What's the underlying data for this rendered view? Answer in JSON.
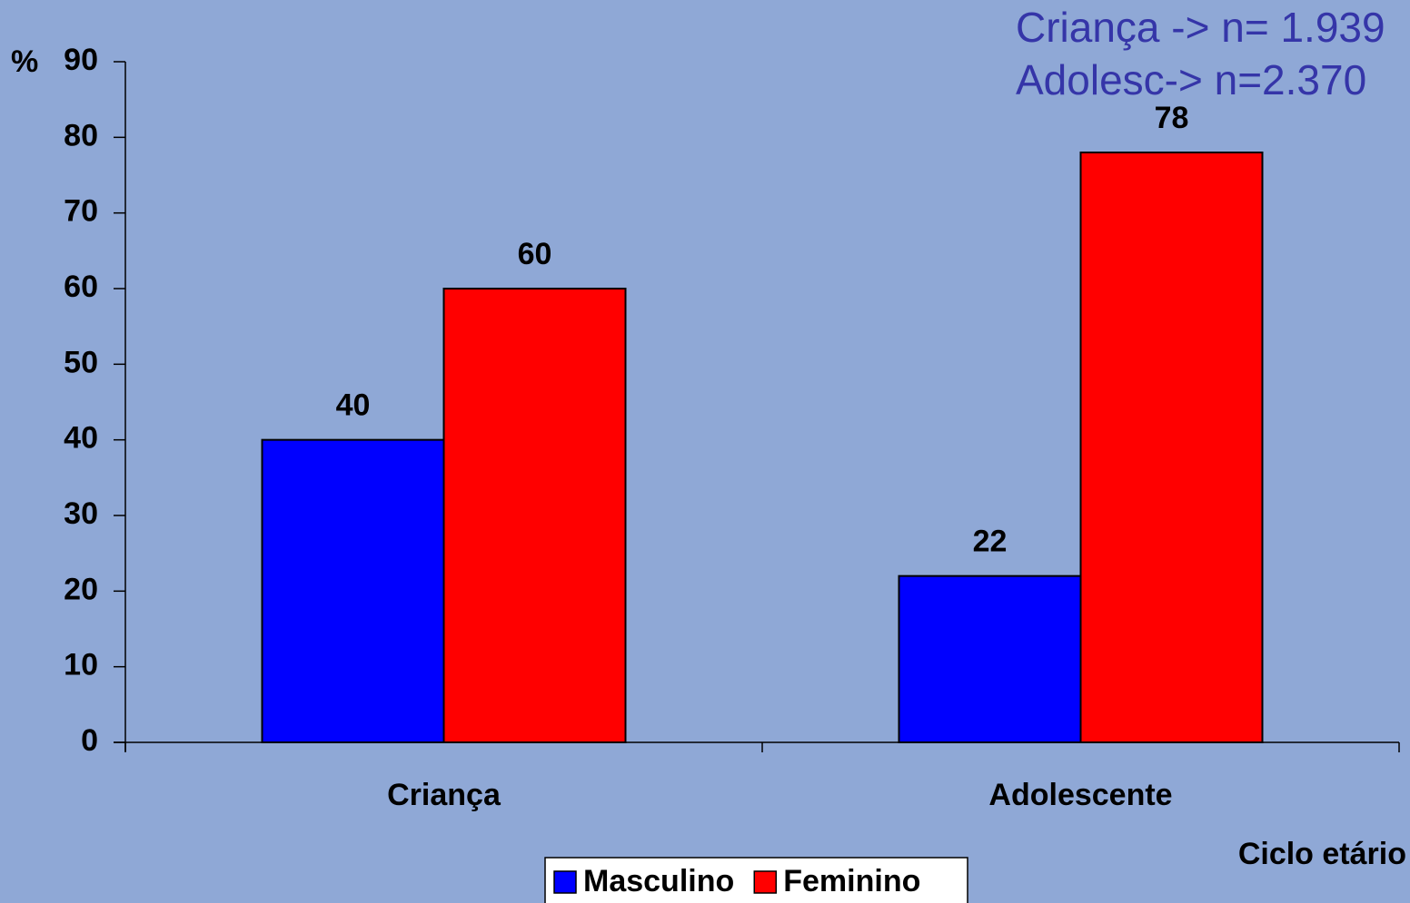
{
  "chart_data": {
    "type": "bar",
    "y_label": "%",
    "x_label": "Ciclo etário",
    "annotations": [
      "Criança -> n= 1.939",
      "Adolesc-> n=2.370"
    ],
    "categories": [
      "Criança",
      "Adolescente"
    ],
    "series": [
      {
        "name": "Masculino",
        "color": "#0000ff",
        "values": [
          40,
          22
        ]
      },
      {
        "name": "Feminino",
        "color": "#ff0000",
        "values": [
          60,
          78
        ]
      }
    ],
    "ylim": [
      0,
      90
    ],
    "yticks": [
      0,
      10,
      20,
      30,
      40,
      50,
      60,
      70,
      80,
      90
    ],
    "legend": "bottom"
  }
}
